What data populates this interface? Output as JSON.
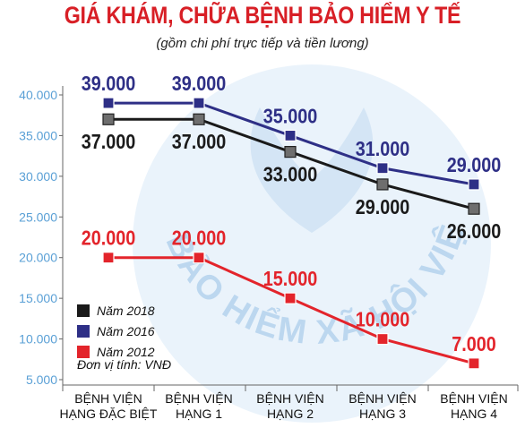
{
  "chart_data": {
    "type": "line",
    "title": "GIÁ KHÁM, CHỮA BỆNH BẢO HIỂM Y TẾ",
    "subtitle": "(gồm chi phí trực tiếp và tiền lương)",
    "categories": [
      [
        "BỆNH VIỆN",
        "HẠNG ĐẶC BIỆT"
      ],
      [
        "BỆNH VIỆN",
        "HẠNG 1"
      ],
      [
        "BỆNH VIỆN",
        "HẠNG 2"
      ],
      [
        "BỆNH VIỆN",
        "HẠNG 3"
      ],
      [
        "BỆNH VIỆN",
        "HẠNG 4"
      ]
    ],
    "y_ticks": [
      "5.000",
      "10.000",
      "15.000",
      "20.000",
      "25.000",
      "30.000",
      "35.000",
      "40.000"
    ],
    "ylim": [
      5000,
      40000
    ],
    "series": [
      {
        "name": "Năm 2016",
        "color": "#2e2f86",
        "values": [
          39000,
          39000,
          35000,
          31000,
          29000
        ],
        "labels": [
          "39.000",
          "39.000",
          "35.000",
          "31.000",
          "29.000"
        ],
        "label_position": "above"
      },
      {
        "name": "Năm 2018",
        "color": "#1a1a1a",
        "values": [
          37000,
          37000,
          33000,
          29000,
          26000
        ],
        "labels": [
          "37.000",
          "37.000",
          "33.000",
          "29.000",
          "26.000"
        ],
        "label_position": "below"
      },
      {
        "name": "Năm 2012",
        "color": "#e3242b",
        "values": [
          20000,
          20000,
          15000,
          10000,
          7000
        ],
        "labels": [
          "20.000",
          "20.000",
          "15.000",
          "10.000",
          "7.000"
        ],
        "label_position": "above"
      }
    ],
    "legend": {
      "placement": "bottom-left",
      "entries": [
        {
          "label": "Năm 2018",
          "color": "#1a1a1a"
        },
        {
          "label": "Năm 2016",
          "color": "#2e2f86"
        },
        {
          "label": "Năm 2012",
          "color": "#e3242b"
        }
      ],
      "unit_note": "Đơn vị tính: VNĐ"
    },
    "watermark_text": "BẢO HIỂM XÃ HỘI VIỆT NAM",
    "grid": false
  }
}
